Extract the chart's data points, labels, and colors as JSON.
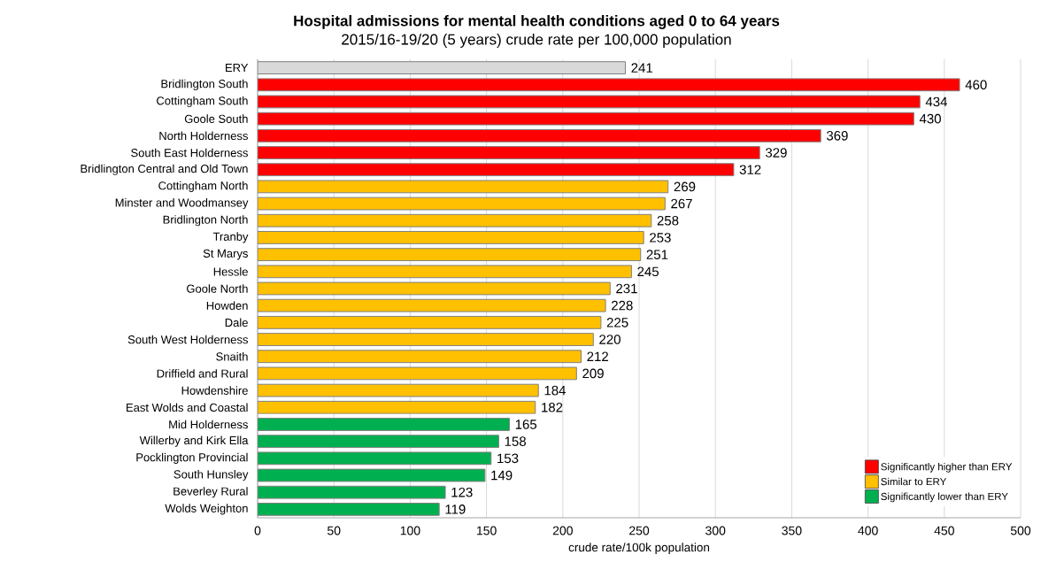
{
  "chart_data": {
    "type": "bar",
    "orientation": "horizontal",
    "title": "Hospital admissions for mental health conditions aged 0 to 64 years",
    "subtitle": "2015/16-19/20 (5 years) crude rate per 100,000 population",
    "xlabel": "crude rate/100k population",
    "categories": [
      "ERY",
      "Bridlington South",
      "Cottingham South",
      "Goole South",
      "North Holderness",
      "South East Holderness",
      "Bridlington Central and Old Town",
      "Cottingham North",
      "Minster and Woodmansey",
      "Bridlington North",
      "Tranby",
      "St Marys",
      "Hessle",
      "Goole North",
      "Howden",
      "Dale",
      "South West Holderness",
      "Snaith",
      "Driffield and Rural",
      "Howdenshire",
      "East Wolds and Coastal",
      "Mid Holderness",
      "Willerby and Kirk Ella",
      "Pocklington Provincial",
      "South Hunsley",
      "Beverley Rural",
      "Wolds Weighton"
    ],
    "series": [
      {
        "color": "#d9d9d9",
        "values": [
          241,
          null,
          null,
          null,
          null,
          null,
          null,
          null,
          null,
          null,
          null,
          null,
          null,
          null,
          null,
          null,
          null,
          null,
          null,
          null,
          null,
          null,
          null,
          null,
          null,
          null,
          null
        ]
      },
      {
        "name": "Significantly higher than ERY",
        "color": "#ff0000",
        "values": [
          null,
          460,
          434,
          430,
          369,
          329,
          312,
          null,
          null,
          null,
          null,
          null,
          null,
          null,
          null,
          null,
          null,
          null,
          null,
          null,
          null,
          null,
          null,
          null,
          null,
          null,
          null
        ]
      },
      {
        "name": "Similar to ERY",
        "color": "#ffc000",
        "values": [
          null,
          null,
          null,
          null,
          null,
          null,
          null,
          269,
          267,
          258,
          253,
          251,
          245,
          231,
          228,
          225,
          220,
          212,
          209,
          184,
          182,
          null,
          null,
          null,
          null,
          null,
          null
        ]
      },
      {
        "name": "Significantly lower than ERY",
        "color": "#00b050",
        "values": [
          null,
          null,
          null,
          null,
          null,
          null,
          null,
          null,
          null,
          null,
          null,
          null,
          null,
          null,
          null,
          null,
          null,
          null,
          null,
          null,
          null,
          165,
          158,
          153,
          149,
          123,
          119
        ]
      }
    ],
    "xlim": [
      0,
      500
    ],
    "xticks": [
      0,
      50,
      100,
      150,
      200,
      250,
      300,
      350,
      400,
      450,
      500
    ],
    "grid": "x",
    "legend": "bottom right",
    "data_labels": true
  }
}
